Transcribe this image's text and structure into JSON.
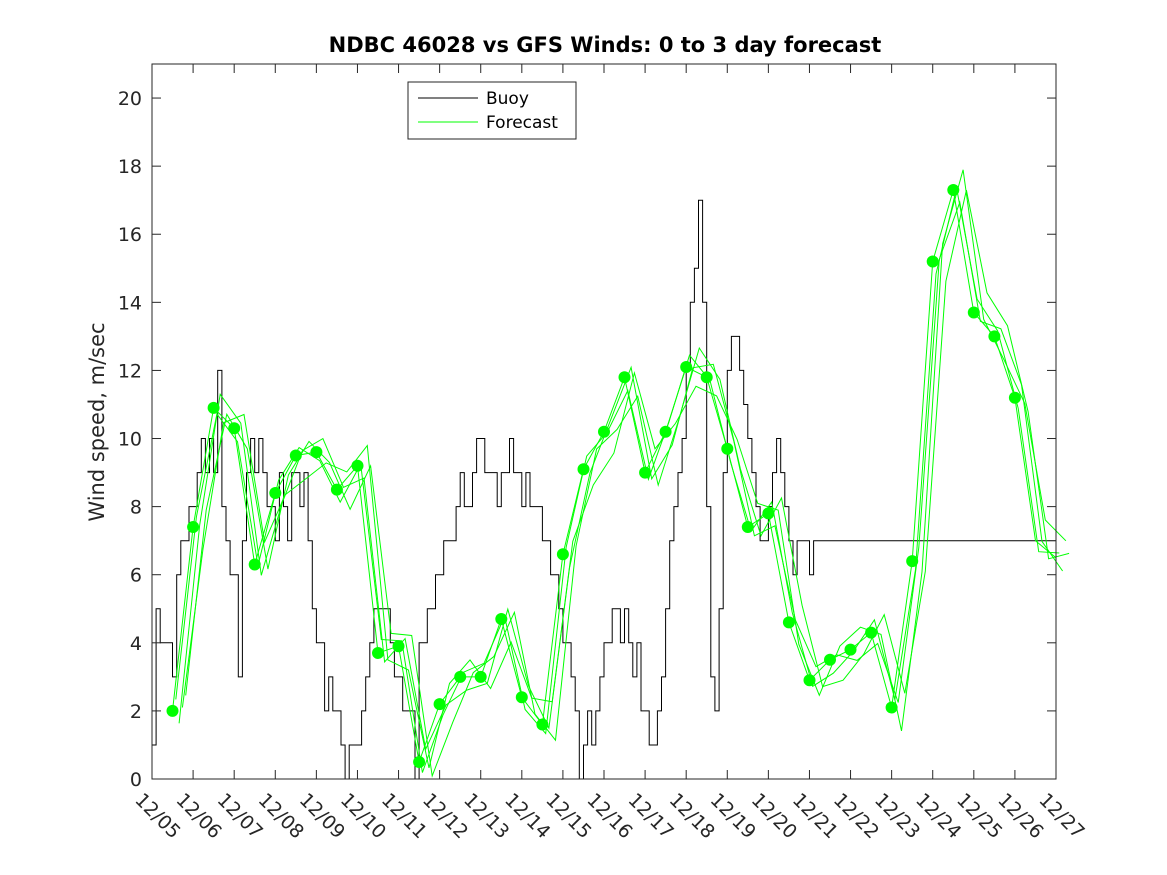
{
  "chart_data": {
    "type": "line",
    "title": "NDBC 46028 vs GFS Winds: 0 to 3 day forecast",
    "xlabel": "",
    "ylabel": "Wind speed, m/sec",
    "xlim": [
      0,
      22
    ],
    "ylim": [
      0,
      21
    ],
    "y_ticks": [
      0,
      2,
      4,
      6,
      8,
      10,
      12,
      14,
      16,
      18,
      20
    ],
    "x_tick_labels": [
      "12/05",
      "12/06",
      "12/07",
      "12/08",
      "12/09",
      "12/10",
      "12/11",
      "12/12",
      "12/13",
      "12/14",
      "12/15",
      "12/16",
      "12/17",
      "12/18",
      "12/19",
      "12/20",
      "12/21",
      "12/22",
      "12/23",
      "12/24",
      "12/25",
      "12/26",
      "12/27"
    ],
    "grid": false,
    "legend": {
      "placement": "top-left",
      "entries": [
        "Buoy",
        "Forecast"
      ]
    },
    "colors": {
      "buoy": "#000000",
      "forecast": "#00ff00",
      "markers": "#00ff00",
      "axes": "#262626"
    },
    "series": [
      {
        "name": "Buoy",
        "style": "step",
        "x": [
          0,
          0.1,
          0.2,
          0.3,
          0.4,
          0.5,
          0.6,
          0.7,
          0.8,
          0.9,
          1.0,
          1.1,
          1.2,
          1.3,
          1.4,
          1.5,
          1.6,
          1.7,
          1.8,
          1.9,
          2.0,
          2.1,
          2.2,
          2.3,
          2.4,
          2.5,
          2.6,
          2.7,
          2.8,
          2.9,
          3.0,
          3.1,
          3.2,
          3.3,
          3.4,
          3.5,
          3.6,
          3.7,
          3.8,
          3.9,
          4.0,
          4.1,
          4.2,
          4.3,
          4.4,
          4.5,
          4.6,
          4.7,
          4.8,
          4.9,
          5.0,
          5.1,
          5.2,
          5.3,
          5.4,
          5.5,
          5.6,
          5.7,
          5.8,
          5.9,
          6.0,
          6.1,
          6.2,
          6.3,
          6.4,
          6.5,
          6.6,
          6.7,
          6.8,
          6.9,
          7.0,
          7.1,
          7.2,
          7.3,
          7.4,
          7.5,
          7.6,
          7.7,
          7.8,
          7.9,
          8.0,
          8.1,
          8.2,
          8.3,
          8.4,
          8.5,
          8.6,
          8.7,
          8.8,
          8.9,
          9.0,
          9.1,
          9.2,
          9.3,
          9.4,
          9.5,
          9.6,
          9.7,
          9.8,
          9.9,
          10.0,
          10.1,
          10.2,
          10.3,
          10.4,
          10.5,
          10.6,
          10.7,
          10.8,
          10.9,
          11.0,
          11.1,
          11.2,
          11.3,
          11.4,
          11.5,
          11.6,
          11.7,
          11.8,
          11.9,
          12.0,
          12.1,
          12.2,
          12.3,
          12.4,
          12.5,
          12.6,
          12.7,
          12.8,
          12.9,
          13.0,
          13.1,
          13.2,
          13.3,
          13.4,
          13.5,
          13.6,
          13.7,
          13.8,
          13.9,
          14.0,
          14.1,
          14.2,
          14.3,
          14.4,
          14.5,
          14.6,
          14.7,
          14.8,
          14.9,
          15.0,
          15.1,
          15.2,
          15.3,
          15.4,
          15.5,
          15.6,
          15.7,
          15.8,
          15.9,
          16.0,
          16.1,
          16.2,
          16.3,
          16.4,
          16.5,
          16.6,
          16.7,
          16.8,
          16.9,
          17.0,
          17.1,
          17.2,
          17.3,
          17.4,
          17.5,
          17.6,
          17.7,
          17.8,
          17.9,
          18.0,
          18.1,
          18.2,
          18.3,
          18.4,
          18.5,
          18.6,
          18.7,
          18.8,
          18.9,
          19.0,
          19.1,
          19.2,
          19.3,
          19.4,
          19.5,
          19.6,
          19.7,
          19.8,
          19.9,
          20.0,
          20.1,
          20.2,
          20.3,
          20.4,
          20.5,
          20.6,
          20.7,
          20.8,
          20.9,
          21.0,
          21.1,
          21.2,
          21.3,
          21.4,
          21.5,
          21.6,
          21.7,
          21.8,
          21.9,
          22.0
        ],
        "values": [
          1,
          5,
          4,
          4,
          4,
          3,
          6,
          7,
          7,
          8,
          8,
          9,
          10,
          9,
          10,
          9,
          12,
          8,
          7,
          6,
          6,
          3,
          7,
          9,
          10,
          9,
          10,
          9,
          8,
          8,
          7,
          9,
          8,
          7,
          9,
          9,
          8,
          9,
          7,
          5,
          4,
          4,
          2,
          3,
          2,
          2,
          1,
          0,
          1,
          1,
          1,
          2,
          3,
          4,
          5,
          5,
          5,
          5,
          4,
          3,
          3,
          2,
          2,
          2,
          0,
          4,
          4,
          5,
          5,
          6,
          6,
          7,
          7,
          7,
          8,
          9,
          8,
          8,
          9,
          10,
          10,
          9,
          9,
          9,
          8,
          9,
          9,
          10,
          9,
          9,
          8,
          9,
          8,
          8,
          8,
          7,
          7,
          6,
          6,
          5,
          4,
          4,
          3,
          2,
          0,
          1,
          2,
          1,
          2,
          3,
          4,
          4,
          5,
          5,
          4,
          5,
          4,
          3,
          4,
          2,
          2,
          1,
          1,
          2,
          3,
          5,
          7,
          8,
          9,
          10,
          12,
          14,
          15,
          17,
          14,
          8,
          3,
          2,
          5,
          9,
          12,
          13,
          13,
          12,
          11,
          10,
          9,
          8,
          7,
          7,
          8,
          9,
          10,
          9,
          8,
          7,
          6,
          7,
          7,
          7,
          6,
          7,
          7,
          7,
          7,
          7,
          7,
          7,
          7,
          7,
          7,
          7,
          7,
          7,
          7,
          7,
          7,
          7,
          7,
          7,
          7,
          7,
          7,
          7,
          7,
          7,
          7,
          7,
          7,
          7,
          7,
          7,
          7,
          7,
          7,
          7,
          7,
          7,
          7,
          7,
          7,
          7,
          7,
          7,
          7,
          7,
          7,
          7,
          7,
          7,
          7,
          7,
          7,
          7,
          7,
          7,
          7,
          7,
          7,
          7,
          7
        ]
      },
      {
        "name": "Forecast",
        "style": "line",
        "x": [
          0.5,
          1.0,
          1.5,
          2.0,
          2.5,
          3.0,
          3.5,
          4.0,
          4.5,
          5.0,
          5.5,
          6.0,
          6.5,
          7.0,
          7.5,
          8.0,
          8.5,
          9.0,
          9.5,
          10.0,
          10.5,
          11.0,
          11.5,
          12.0,
          12.5,
          13.0,
          13.5,
          14.0,
          14.5,
          15.0,
          15.5,
          16.0,
          16.5,
          17.0,
          17.5,
          18.0,
          18.5,
          19.0,
          19.5,
          20.0,
          20.5,
          21.0,
          21.5,
          22.0
        ],
        "values": [
          2.0,
          7.4,
          10.9,
          10.3,
          6.3,
          8.4,
          9.5,
          9.6,
          8.5,
          9.2,
          3.7,
          3.9,
          0.5,
          2.2,
          3.0,
          3.0,
          4.7,
          2.4,
          1.6,
          6.6,
          9.1,
          10.2,
          11.8,
          9.0,
          10.2,
          12.1,
          11.8,
          9.7,
          7.4,
          7.8,
          4.6,
          2.9,
          3.5,
          3.8,
          4.3,
          2.1,
          6.4,
          15.2,
          17.3,
          13.7,
          13.0,
          11.2,
          7.0,
          6.5
        ]
      }
    ],
    "markers": {
      "name": "Forecast",
      "x": [
        0.5,
        1.0,
        1.5,
        2.0,
        2.5,
        3.0,
        3.5,
        4.0,
        4.5,
        5.0,
        5.5,
        6.0,
        6.5,
        7.0,
        7.5,
        8.0,
        8.5,
        9.0,
        9.5,
        10.0,
        10.5,
        11.0,
        11.5,
        12.0,
        12.5,
        13.0,
        13.5,
        14.0,
        14.5,
        15.0,
        15.5,
        16.0,
        16.5,
        17.0,
        17.5,
        18.0,
        18.5,
        19.0,
        19.5,
        20.0,
        20.5,
        21.0
      ],
      "values": [
        2.0,
        7.4,
        10.9,
        10.3,
        6.3,
        8.4,
        9.5,
        9.6,
        8.5,
        9.2,
        3.7,
        3.9,
        0.5,
        2.2,
        3.0,
        3.0,
        4.7,
        2.4,
        1.6,
        6.6,
        9.1,
        10.2,
        11.8,
        9.0,
        10.2,
        12.1,
        11.8,
        9.7,
        7.4,
        7.8,
        4.6,
        2.9,
        3.5,
        3.8,
        4.3,
        2.1,
        6.4,
        15.2,
        17.3,
        13.7,
        13.0,
        11.2
      ]
    }
  }
}
